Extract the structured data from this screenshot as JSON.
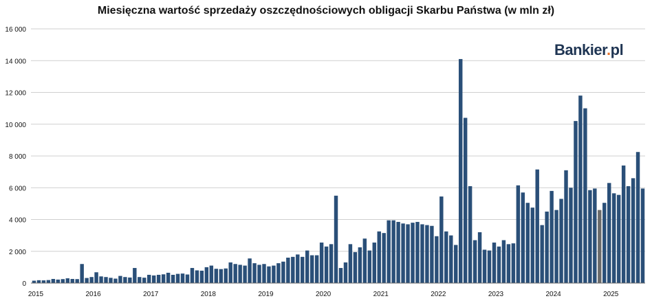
{
  "chart_data": {
    "type": "bar",
    "title": "Miesięczna wartość sprzedaży oszczędnościowych obligacji Skarbu Państwa (w mln zł)",
    "xlabel": "",
    "ylabel": "",
    "ylim": [
      0,
      16000
    ],
    "y_ticks": [
      "0",
      "2 000",
      "4 000",
      "6 000",
      "8 000",
      "10 000",
      "12 000",
      "14 000",
      "16 000"
    ],
    "x_tick_labels": [
      "2015",
      "2016",
      "2017",
      "2018",
      "2019",
      "2020",
      "2021",
      "2022",
      "2023",
      "2024",
      "2025"
    ],
    "grid": "horizontal",
    "bar_color": "#2a4f78",
    "highlight_color": "#6b6b6b",
    "highlight_index": 118,
    "values": [
      150,
      180,
      170,
      190,
      260,
      220,
      250,
      300,
      260,
      250,
      1200,
      320,
      380,
      680,
      420,
      380,
      330,
      280,
      450,
      380,
      350,
      950,
      380,
      340,
      520,
      480,
      520,
      550,
      650,
      520,
      580,
      600,
      540,
      950,
      800,
      780,
      1000,
      1100,
      900,
      880,
      920,
      1300,
      1200,
      1150,
      1100,
      1550,
      1250,
      1150,
      1200,
      1050,
      1100,
      1250,
      1350,
      1600,
      1650,
      1800,
      1650,
      2050,
      1750,
      1750,
      2550,
      2300,
      2450,
      5500,
      950,
      1300,
      2450,
      1950,
      2250,
      2800,
      2050,
      2550,
      3250,
      3150,
      3950,
      3950,
      3850,
      3750,
      3700,
      3800,
      3850,
      3700,
      3650,
      3600,
      2950,
      5450,
      3250,
      3000,
      2400,
      14100,
      10400,
      6100,
      2700,
      3200,
      2100,
      2050,
      2550,
      2300,
      2700,
      2450,
      2500,
      6150,
      5700,
      5050,
      4750,
      7150,
      3650,
      4500,
      5800,
      4600,
      5300,
      7100,
      6000,
      10200,
      11800,
      11000,
      5850,
      5950,
      4600,
      5050,
      6300,
      5650,
      5550,
      7400,
      6100,
      6600,
      8250,
      5950
    ]
  },
  "logo": {
    "text_main": "Bankier",
    "text_dot": ".",
    "text_tld": "pl"
  }
}
